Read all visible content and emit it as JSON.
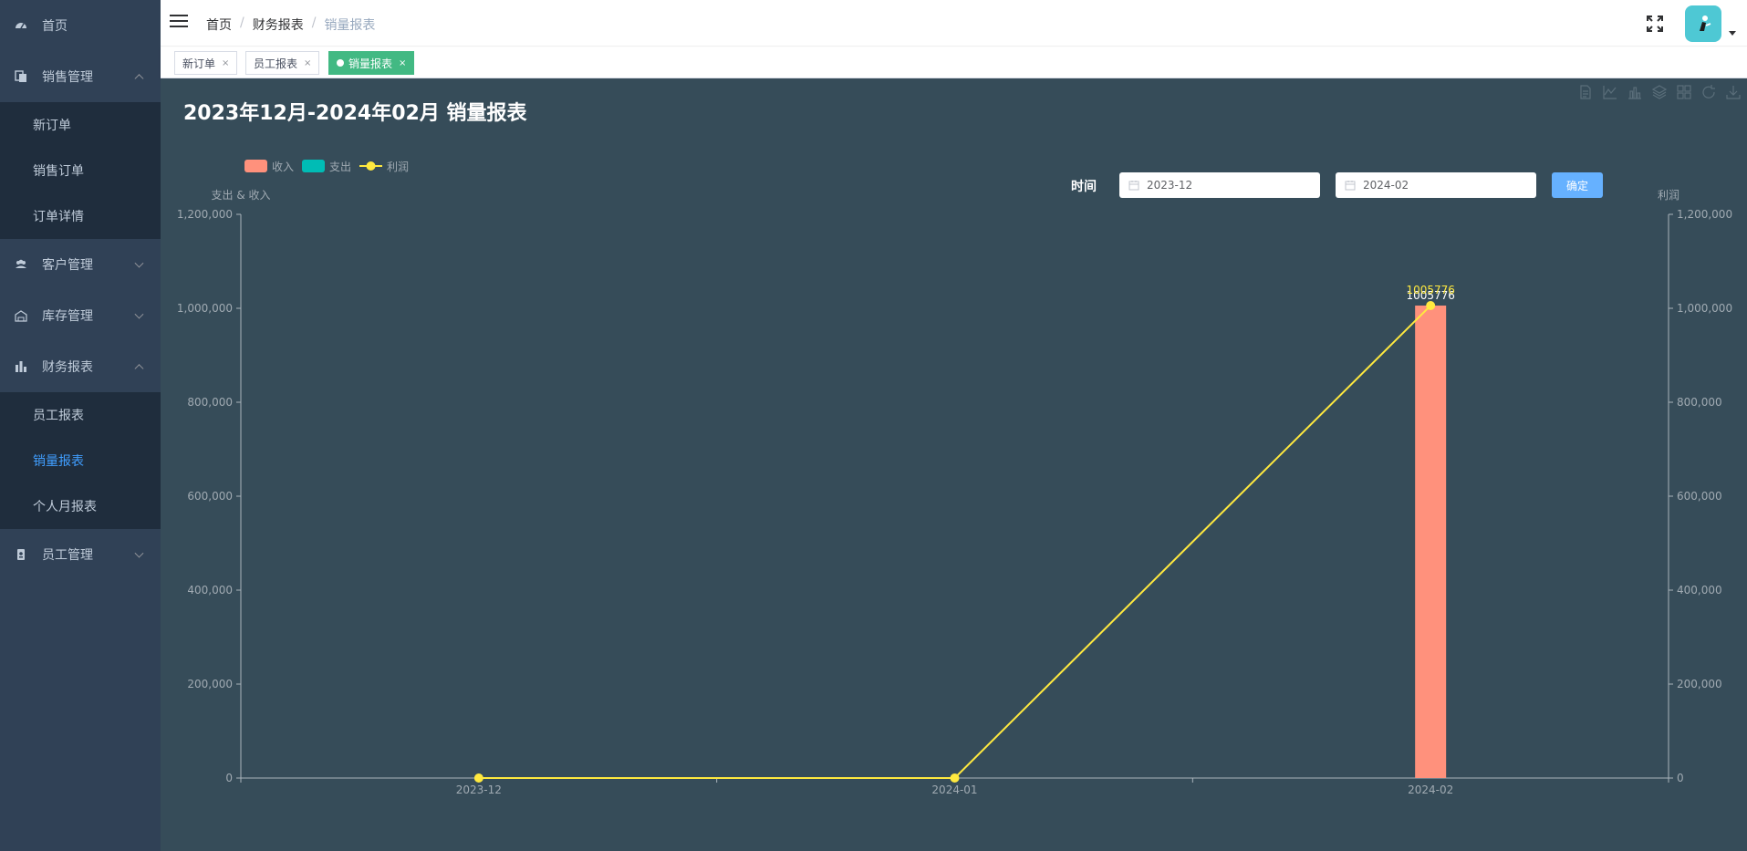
{
  "sidebar": {
    "items": [
      {
        "label": "首页",
        "icon": "dashboard-icon",
        "expandable": false
      },
      {
        "label": "销售管理",
        "icon": "document-copy-icon",
        "expandable": true,
        "open": true,
        "children": [
          {
            "label": "新订单"
          },
          {
            "label": "销售订单"
          },
          {
            "label": "订单详情"
          }
        ]
      },
      {
        "label": "客户管理",
        "icon": "users-icon",
        "expandable": true,
        "open": false
      },
      {
        "label": "库存管理",
        "icon": "warehouse-icon",
        "expandable": true,
        "open": false
      },
      {
        "label": "财务报表",
        "icon": "bar-chart-icon",
        "expandable": true,
        "open": true,
        "children": [
          {
            "label": "员工报表"
          },
          {
            "label": "销量报表",
            "active": true
          },
          {
            "label": "个人月报表"
          }
        ]
      },
      {
        "label": "员工管理",
        "icon": "id-badge-icon",
        "expandable": true,
        "open": false
      }
    ],
    "active_color": "#409eff",
    "background": "#304156"
  },
  "breadcrumb": [
    "首页",
    "财务报表",
    "销量报表"
  ],
  "tags": [
    {
      "label": "新订单",
      "active": false
    },
    {
      "label": "员工报表",
      "active": false
    },
    {
      "label": "销量报表",
      "active": true
    }
  ],
  "tag_active_color": "#42b983",
  "page_title": "2023年12月-2024年02月 销量报表",
  "filter": {
    "label": "时间",
    "start_value": "2023-12",
    "end_value": "2024-02",
    "confirm_label": "确定"
  },
  "toolbox_icons": [
    "data-view-icon",
    "line-switch-icon",
    "bar-switch-icon",
    "stack-icon",
    "tiled-icon",
    "restore-icon",
    "save-image-icon"
  ],
  "chart_data": {
    "type": "bar",
    "background": "#364c59",
    "categories": [
      "2023-12",
      "2024-01",
      "2024-02"
    ],
    "series": [
      {
        "name": "收入",
        "kind": "bar",
        "color": "#ff917c",
        "values": [
          0,
          0,
          1005776
        ],
        "labels": [
          "",
          "",
          "1005776"
        ]
      },
      {
        "name": "支出",
        "kind": "bar",
        "color": "#00bcb5",
        "values": [
          0,
          0,
          0
        ]
      },
      {
        "name": "利润",
        "kind": "line",
        "color": "#ffe93f",
        "axis": "right",
        "values": [
          0,
          0,
          1005776
        ],
        "labels": [
          "",
          "",
          "1005776"
        ]
      }
    ],
    "ylabel_left": "支出 & 收入",
    "ylabel_right": "利润",
    "ylim": [
      0,
      1200000
    ],
    "yticks": [
      0,
      200000,
      400000,
      600000,
      800000,
      1000000,
      1200000
    ],
    "ytick_labels": [
      "0",
      "200,000",
      "400,000",
      "600,000",
      "800,000",
      "1,000,000",
      "1,200,000"
    ],
    "legend_position": "top-left",
    "grid": false
  }
}
